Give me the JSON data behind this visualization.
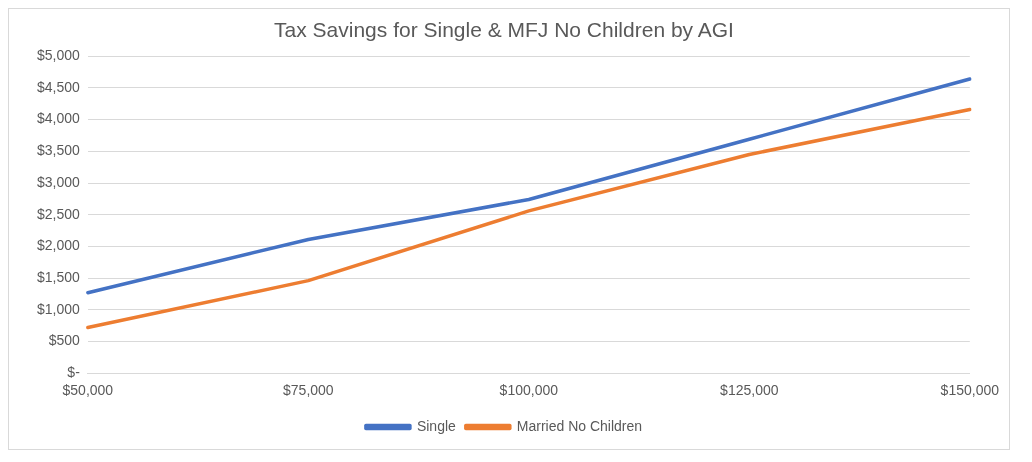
{
  "chart_data": {
    "type": "line",
    "title": "Tax Savings for Single & MFJ No Children by AGI",
    "categories": [
      "$50,000",
      "$75,000",
      "$100,000",
      "$125,000",
      "$150,000"
    ],
    "series": [
      {
        "name": "Single",
        "color": "#4472c4",
        "values": [
          1270,
          2110,
          2740,
          3690,
          4640
        ]
      },
      {
        "name": "Married No Children",
        "color": "#ed7d31",
        "values": [
          720,
          1460,
          2560,
          3450,
          4160
        ]
      }
    ],
    "ylim": [
      0,
      5000
    ],
    "yticks": [
      {
        "value": 0,
        "label": "$-"
      },
      {
        "value": 500,
        "label": "$500"
      },
      {
        "value": 1000,
        "label": "$1,000"
      },
      {
        "value": 1500,
        "label": "$1,500"
      },
      {
        "value": 2000,
        "label": "$2,000"
      },
      {
        "value": 2500,
        "label": "$2,500"
      },
      {
        "value": 3000,
        "label": "$3,000"
      },
      {
        "value": 3500,
        "label": "$3,500"
      },
      {
        "value": 4000,
        "label": "$4,000"
      },
      {
        "value": 4500,
        "label": "$4,500"
      },
      {
        "value": 5000,
        "label": "$5,000"
      }
    ],
    "grid": "y",
    "legend": "bottom",
    "marker": "none",
    "line_style": "solid"
  }
}
